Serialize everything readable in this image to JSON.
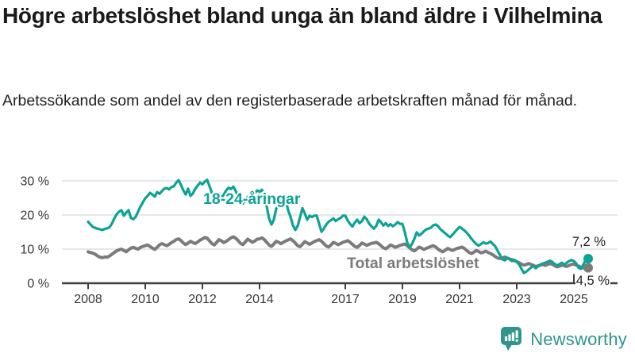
{
  "title": "Högre arbetslöshet bland unga än bland äldre i Vilhelmina",
  "subtitle": "Arbetssökande som andel av den registerbaserade arbetskraften månad för månad.",
  "logo": {
    "text": "Newsworthy",
    "icon": "newsworthy-bar-chart-bubble-icon",
    "color": "#2e968c"
  },
  "colors": {
    "youth_line": "#0ca295",
    "total_line": "#7b7b7b",
    "grid": "#d9d9d9",
    "axis": "#404040"
  },
  "chart_data": {
    "type": "line",
    "unit": "%",
    "x_start_year": 2008,
    "points_per_year": 12,
    "x_tick_years": [
      2008,
      2010,
      2012,
      2014,
      2017,
      2019,
      2021,
      2023,
      2025
    ],
    "x_tick_labels": [
      "2008",
      "2010",
      "2012",
      "2014",
      "2017",
      "2019",
      "2021",
      "2023",
      "2025"
    ],
    "y_ticks": [
      0,
      10,
      20,
      30
    ],
    "y_tick_labels": [
      "0 %",
      "10 %",
      "20 %",
      "30 %"
    ],
    "ylim": [
      0,
      33
    ],
    "grid": true,
    "legend_position": "inline-annotations",
    "series": [
      {
        "name": "18-24-åringar",
        "color": "#0ca295",
        "end_value": 7.2,
        "end_label": "7,2 %",
        "values": [
          18,
          17.2,
          16.5,
          16.2,
          16,
          15.8,
          15.6,
          15.9,
          16.1,
          16.4,
          17.5,
          19,
          20.2,
          21,
          21.4,
          19.8,
          20.7,
          21.4,
          19.1,
          18.8,
          19.5,
          21,
          22.5,
          23.7,
          24.9,
          25.6,
          26.5,
          26,
          25.4,
          26.7,
          26.2,
          27,
          27.7,
          27.9,
          27.5,
          28.2,
          28.4,
          29.5,
          30.2,
          28.8,
          27.2,
          26,
          27.7,
          25.6,
          26.3,
          27.7,
          28.6,
          29.5,
          29,
          29.8,
          30.3,
          28.4,
          26.5,
          24.6,
          25.4,
          26.3,
          25.1,
          26,
          27.2,
          28,
          27.6,
          28.3,
          27,
          25.4,
          24.3,
          23.3,
          24.2,
          25.3,
          24.4,
          25.6,
          26.5,
          27.2,
          26.8,
          27.4,
          25.8,
          22.5,
          19,
          17.2,
          18.6,
          21.9,
          23,
          24.2,
          25.1,
          24.4,
          21.4,
          19.5,
          17,
          15.6,
          16.8,
          19.3,
          22,
          20.5,
          18.6,
          19.8,
          19.4,
          19.8,
          19.8,
          17.5,
          15.1,
          16,
          17.2,
          18,
          18.5,
          19,
          18.2,
          18.8,
          19.1,
          19.8,
          19.8,
          18.4,
          17.4,
          16.6,
          17.8,
          18.6,
          17.6,
          18.2,
          19.5,
          18.8,
          17.5,
          16.7,
          16,
          16.8,
          18.6,
          17.9,
          16.9,
          17.6,
          16.8,
          17.3,
          16.7,
          17.2,
          17.9,
          17.4,
          17.4,
          15,
          12,
          10.5,
          11.5,
          13,
          14.9,
          14,
          14.5,
          15.2,
          15.8,
          16,
          16.3,
          17,
          17.2,
          16.7,
          15.8,
          15.2,
          14.6,
          14,
          13.5,
          14.2,
          15,
          15.8,
          16.5,
          16,
          15.5,
          14.8,
          14,
          13,
          12.2,
          11.5,
          11,
          11.5,
          12,
          11.6,
          11.8,
          12.2,
          11.5,
          10.8,
          9.5,
          8.2,
          7,
          6.7,
          7.4,
          7,
          6.5,
          6.8,
          6.3,
          5.5,
          4.2,
          3,
          3.4,
          4,
          4.6,
          5,
          4.4,
          5,
          5.5,
          5.8,
          6,
          6.3,
          6.6,
          6.2,
          5.6,
          5.2,
          5.6,
          6,
          5.4,
          6,
          6.5,
          6.8,
          6.5,
          5.8,
          4.5,
          4.2,
          5.5,
          6.8,
          7.2
        ]
      },
      {
        "name": "Total arbetslöshet",
        "color": "#7b7b7b",
        "end_value": 4.5,
        "end_label": "4,5 %",
        "values": [
          9.2,
          9,
          8.8,
          8.5,
          8,
          7.6,
          7.5,
          7.7,
          7.6,
          8,
          8.5,
          9,
          9.5,
          9.8,
          10,
          9.6,
          9.2,
          9.8,
          10.3,
          10.5,
          10.2,
          10,
          10.5,
          10.8,
          11,
          11.2,
          10.8,
          10.3,
          9.9,
          10.5,
          11.3,
          11.6,
          11.3,
          11,
          11.4,
          11.9,
          12.3,
          12.8,
          13,
          12.5,
          11.8,
          11.3,
          11.8,
          12.3,
          11.9,
          11.6,
          12.1,
          12.6,
          13,
          13.4,
          13.2,
          12.4,
          11.6,
          11.2,
          12,
          12.8,
          12.4,
          11.9,
          12.3,
          12.8,
          13.3,
          13.6,
          13.2,
          12.5,
          11.7,
          11.3,
          12.1,
          12.9,
          12.5,
          12,
          12.4,
          12.9,
          13,
          13.3,
          12.8,
          12,
          11.2,
          10.8,
          11.5,
          12.3,
          12,
          11.6,
          12,
          12.4,
          12.7,
          13,
          12.5,
          11.8,
          11,
          10.7,
          11.4,
          12.2,
          11.8,
          11.4,
          11.8,
          12.2,
          12.5,
          12.8,
          12.3,
          11.6,
          10.9,
          10.6,
          11.2,
          12,
          11.7,
          11.3,
          11.6,
          12,
          12.2,
          12.5,
          12,
          11.4,
          10.8,
          10.5,
          11.1,
          11.8,
          11.5,
          11.1,
          11.4,
          11.7,
          11.8,
          12,
          11.6,
          11,
          10.4,
          10.1,
          10.6,
          11.2,
          10.9,
          10.5,
          10.8,
          11.1,
          11.3,
          11.5,
          11,
          10.4,
          9.8,
          9.5,
          10,
          10.6,
          10.3,
          9.9,
          10.2,
          10.5,
          10.8,
          11,
          10.6,
          10,
          9.5,
          9.2,
          9.7,
          10.2,
          9.9,
          9.6,
          9.9,
          10.2,
          10.4,
          10.6,
          10.2,
          9.6,
          9,
          8.7,
          9.1,
          9.6,
          9.3,
          8.9,
          9.1,
          9.4,
          9,
          8.7,
          8.3,
          7.8,
          7.4,
          7.2,
          7.4,
          7.7,
          7.4,
          7.1,
          6.9,
          6.7,
          6.3,
          6,
          5.6,
          5.3,
          5.5,
          5.8,
          5.5,
          5.2,
          4.9,
          5.1,
          5.3,
          5.5,
          5.2,
          5.5,
          5.8,
          5.5,
          5.1,
          4.8,
          5,
          5.3,
          5.1,
          4.9,
          5.2,
          5.5,
          5.6,
          5.3,
          5,
          4.7,
          4.5,
          4.4,
          4.5
        ]
      }
    ]
  }
}
